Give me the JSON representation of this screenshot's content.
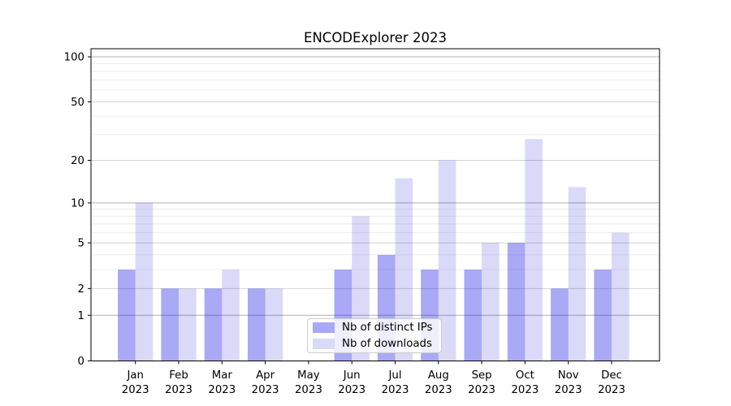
{
  "chart_data": {
    "type": "bar",
    "title": "ENCODExplorer 2023",
    "categories": [
      "Jan",
      "Feb",
      "Mar",
      "Apr",
      "May",
      "Jun",
      "Jul",
      "Aug",
      "Sep",
      "Oct",
      "Nov",
      "Dec"
    ],
    "year_label": "2023",
    "series": [
      {
        "name": "Nb of distinct IPs",
        "color": "rgba(10,10,225,0.35)",
        "values": [
          3,
          2,
          2,
          2,
          0,
          3,
          4,
          3,
          3,
          5,
          2,
          3
        ]
      },
      {
        "name": "Nb of downloads",
        "color": "rgba(8,8,210,0.15)",
        "values": [
          10,
          2,
          3,
          2,
          0,
          8,
          15,
          20,
          5,
          28,
          13,
          6
        ]
      }
    ],
    "yscale": "log1p",
    "yticks": [
      0,
      1,
      2,
      5,
      10,
      20,
      50,
      100
    ],
    "minor_yticks": [
      3,
      4,
      6,
      7,
      8,
      9,
      30,
      40,
      60,
      70,
      80,
      90
    ],
    "ylim": [
      0,
      114
    ],
    "xlabel": "",
    "ylabel": "",
    "grid": true,
    "legend_position": "lower center",
    "grid_colors": {
      "decade": "#b0b0b0",
      "labeled": "#d4d4d4",
      "minor": "#ececec"
    },
    "axis_color": "#000000",
    "background": "#ffffff"
  }
}
